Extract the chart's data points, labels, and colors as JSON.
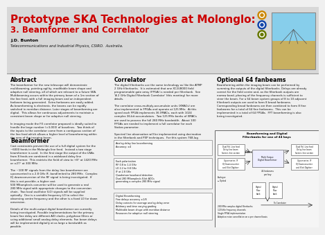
{
  "title_line1": "Prototype SKA Technologies at Molonglo:",
  "title_line2": "3. Beamformer and Correlator",
  "author": "J.D. Bunton",
  "affiliation": "Telecommunications and Industrial Physics, CSIRO.  Australia.",
  "title_color1": "#cc0000",
  "title_color2": "#cc0000",
  "bg_color": "#f0f0f0",
  "header_bg": "#d8d8d8",
  "text_color": "#111111",
  "abstract_title": "Abstract",
  "abstract_body": "The beamformer for the new telescope will demonstrate\nmultibeaming, pointing agility, modifiable beam shape and\nadaptive null steering, all of which are relevant to a future SKA.\nMultibeaming occurs within the primary beam of a 1m section of\nthe line feed, with a full imaging beam and an independent\nfanbeam being generated.  Extra fanbeams are easily added.\nAs beamforming is electronic, the beams can be rapidly\nswitched in meridian distance. Later stages of beamforming are\ndigital.  This allows for continuous adjustments to maintain a\nconsistent beam shape or for adaptive null steering.\n\nIn imaging mode the FX correlator proposed is ideally suited to\nhandle the large number (>3,000) of baselines.  Two thirds of\nthe inputs to the correlator come from a contiguous section of\nthe line feed which allows a higher level of beamforming within\nthe area of the imaging beam.",
  "beamformer_title": "Beamformer",
  "beamformer_body": "Cost constraints prevent the use of a full digital system for the\n~6000 feeds in the Molonglo line feed.  Instead a two stage\nbeamformer is used.  In the first stage the output of the LNAs\nfrom 8 feeds are combined in a wideband delay line\nbeamformer.  This restricts the field of view to +8° at 1420 MHz\nor ±27° at 300 MHz.\n\nThe ~100 RF signals from the delay line beamformer are\nupconverted to a 2.8 GHz IF, bandlimited to 280 MHz.  Complex\nIQ downconversion of the RF signal is being investigated.  If\nthis is not possible, a higher cost\n500 MSamples/s converter will be used to generate a real\n280 MHz signal with appropriate changes to the conversion\nchain.  Two local oscillator (LO) signals will be supplied\noptically.  One is a variable frequency LO to select the\nobserving centre frequency and the other is a fixed LO for down\nconversion.\n\nDetails of the multi-output digital beamformer are currently\nbeing investigated. Possible implementations for the primary\nbeam fine delay are different A/D clocks, polyphase filters or\nusing additional small analog delay elements. Fan beam delays\nwill be implemented digitally at as large a bandwidth as\npossible.",
  "correlator_title": "Correlator",
  "correlator_body": "The digital filterbanks use the same technology as like the ATMP\n2 GHz filterbanks.  It is estimated that one XC2U8000 field\nprogrammable gate array (FPGA) is needed per filterbank.  See\n'A 2 GHz Digital Filterbank Correlator' (this meeting) for more\ndetails.\n\nThe correlator cross-multiply-accumulate units (XMACs) are\nalso implemented in FPGAs and operate at 125 MHz.  At this\nspeed each FPGA implements 36 XMACs, each with 1024\ncomplex 36-bit accumulators.  Two 125 MHz banks of XMACs\nare used to process the full 280 MHz bandwidth.  About 100\nFPGAs are needed to implement a full correlator for each\nStokes parameter.\n\nSpectral line observation will be implemented using decimation\nin the filterbank and PXP techniques.  For this system 768-lag\nXF correlations can be implemented in each bank of the\nXMACs.  This allows for a further 500 fold increase in resolution\nbeyond that provided by the digital filterbank.",
  "optional_title": "Optional 64 fanbeams",
  "optional_body": "Beamforming within the imaging beam can be performed by\nsumming the outputs of the digital filterbanks. Delays are already\ncorrect for the field centre and, as the filterbank outputs are\nnarrow band, phasing of the frequency channels is sufficient to\nsteer the beam. For a 64 beam system groups of 8 to 10 adjacent\nfilterbank outputs are used to form 8 broad fanbeams.\nCorresponding broad fanbeams are then combined to form 8 fine\nfanbeams for a total of 64 fine fanbeams.  This can be\nimplemented in a total of 64 FPGAs.  FFT beamforming is also\nbeing investigated.",
  "diagram_title": "Beamforming and Digital\nFilterbanks for one of 44 bays",
  "analog_box_text": "Analog delay line beamforming\nAccuracy: ±4",
  "digital_box_text": "Each polarisation\nRF 0.8 to 1.4 GHz\nLO 2.2 to 0.8 GHz\nIF at 2.8 GHz\nQuadrature baseband detection\nDual 280 MSamples/s 8-bit ADCs\ngenerating a complex 280 MHz signal",
  "digital_bf_box_text": "Digital Beamforming\nFine delays accuracy ±1/8\nDelay corrects for average analog delay error\nArbitrary and time varying grading\nMultitable beam shape with meridian distance\nResources for adaptive null steering",
  "digital_fb_list": "280 MHz complex digital filterbanks\n120 kHz frequency channels\nSingle FPGA implementation\nAdaptive noise cancellation on a per channel basis",
  "logo_colors": [
    "#cc8800",
    "#1144aa",
    "#667700"
  ],
  "photo_sky": "#87CEEB",
  "photo_ground": "#c8b060",
  "photo_antenna": "#888888"
}
